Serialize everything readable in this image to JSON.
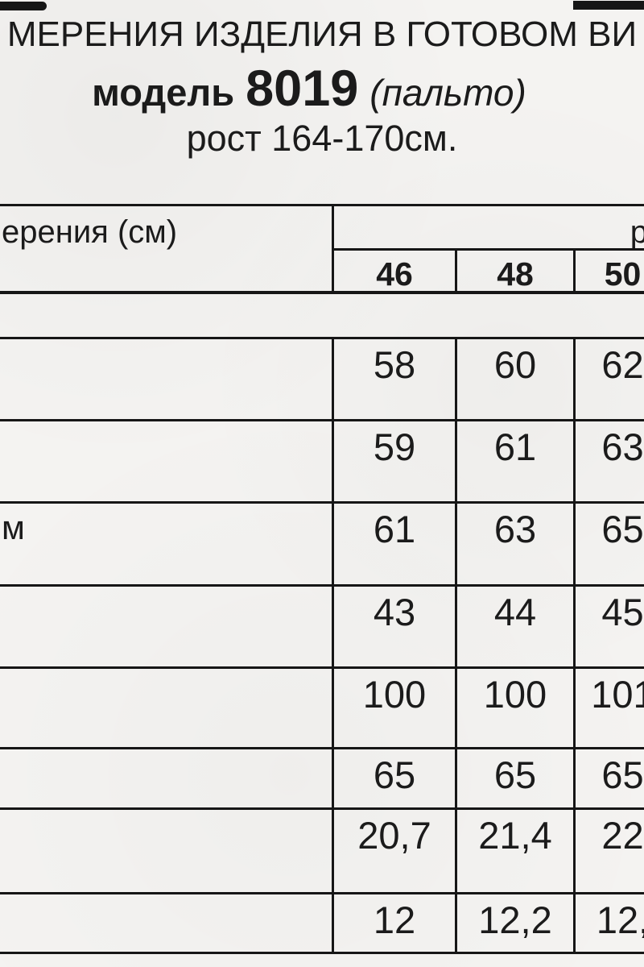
{
  "page": {
    "title_line1": "МЕРЕНИЯ ИЗДЕЛИЯ В ГОТОВОМ ВИ",
    "model_label": "модель",
    "model_number": "8019",
    "model_type": "(пальто)",
    "height_line": "рост 164-170см."
  },
  "table": {
    "header": {
      "label_column": "ерения (см)",
      "size_group_label": "р",
      "sizes": [
        "46",
        "48",
        "50"
      ]
    },
    "rows": [
      {
        "label": "",
        "values": [
          "58",
          "60",
          "62"
        ]
      },
      {
        "label": "",
        "values": [
          "59",
          "61",
          "63"
        ]
      },
      {
        "label": "м",
        "values": [
          "61",
          "63",
          "65"
        ]
      },
      {
        "label": "",
        "values": [
          "43",
          "44",
          "45"
        ]
      },
      {
        "label": "",
        "values": [
          "100",
          "100",
          "101"
        ]
      },
      {
        "label": "",
        "values": [
          "65",
          "65",
          "65"
        ]
      },
      {
        "label": "",
        "values": [
          "20,7",
          "21,4",
          "22"
        ]
      },
      {
        "label": "",
        "values": [
          "12",
          "12,2",
          "12,"
        ]
      }
    ]
  }
}
